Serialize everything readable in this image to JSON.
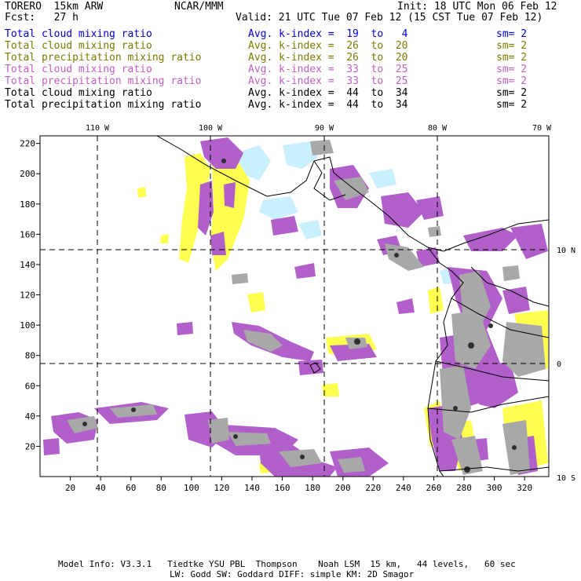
{
  "header": {
    "model": "TORERO  15km ARW",
    "center": "NCAR/MMM",
    "init": "Init: 18 UTC Mon 06 Feb 12",
    "fcst": "Fcst:   27 h",
    "valid": "Valid: 21 UTC Tue 07 Feb 12 (15 CST Tue 07 Feb 12)"
  },
  "legend": [
    {
      "field": "Total cloud mixing ratio",
      "kindex": "Avg. k-index =  19  to   4",
      "sm": "sm= 2",
      "color": "#0000cc"
    },
    {
      "field": "Total cloud mixing ratio",
      "kindex": "Avg. k-index =  26  to  20",
      "sm": "sm= 2",
      "color": "#7a7a00"
    },
    {
      "field": "Total precipitation mixing ratio",
      "kindex": "Avg. k-index =  26  to  20",
      "sm": "sm= 2",
      "color": "#7a7a00"
    },
    {
      "field": "Total cloud mixing ratio",
      "kindex": "Avg. k-index =  33  to  25",
      "sm": "sm= 2",
      "color": "#c060c0"
    },
    {
      "field": "Total precipitation mixing ratio",
      "kindex": "Avg. k-index =  33  to  25",
      "sm": "sm= 2",
      "color": "#c060c0"
    },
    {
      "field": "Total cloud mixing ratio",
      "kindex": "Avg. k-index =  44  to  34",
      "sm": "sm= 2",
      "color": "#000000"
    },
    {
      "field": "Total precipitation mixing ratio",
      "kindex": "Avg. k-index =  44  to  34",
      "sm": "sm= 2",
      "color": "#000000"
    }
  ],
  "axes": {
    "longitude_labels": [
      "110 W",
      "100 W",
      "90 W",
      "80 W",
      "70 W"
    ],
    "latitude_labels": [
      "10 N",
      "0",
      "10 S"
    ],
    "x_ticks": [
      "20",
      "40",
      "60",
      "80",
      "100",
      "120",
      "140",
      "160",
      "180",
      "200",
      "220",
      "240",
      "260",
      "280",
      "300",
      "320"
    ],
    "y_ticks": [
      "220",
      "200",
      "180",
      "160",
      "140",
      "120",
      "100",
      "80",
      "60",
      "40",
      "20"
    ],
    "x_grid_values": [
      38,
      112,
      186,
      260
    ],
    "y_grid_values": [
      150,
      76
    ]
  },
  "colors": {
    "light_cyan": "#c8f0ff",
    "yellow": "#ffff50",
    "purple": "#b060c8",
    "gray": "#a8a8a8",
    "dark": "#303030",
    "coast": "#000000"
  },
  "footer": {
    "line1": "Model Info: V3.3.1   Tiedtke YSU PBL  Thompson    Noah LSM  15 km,   44 levels,   60 sec",
    "line2": "LW: Godd SW: Goddard DIFF: simple KM: 2D Smagor"
  }
}
